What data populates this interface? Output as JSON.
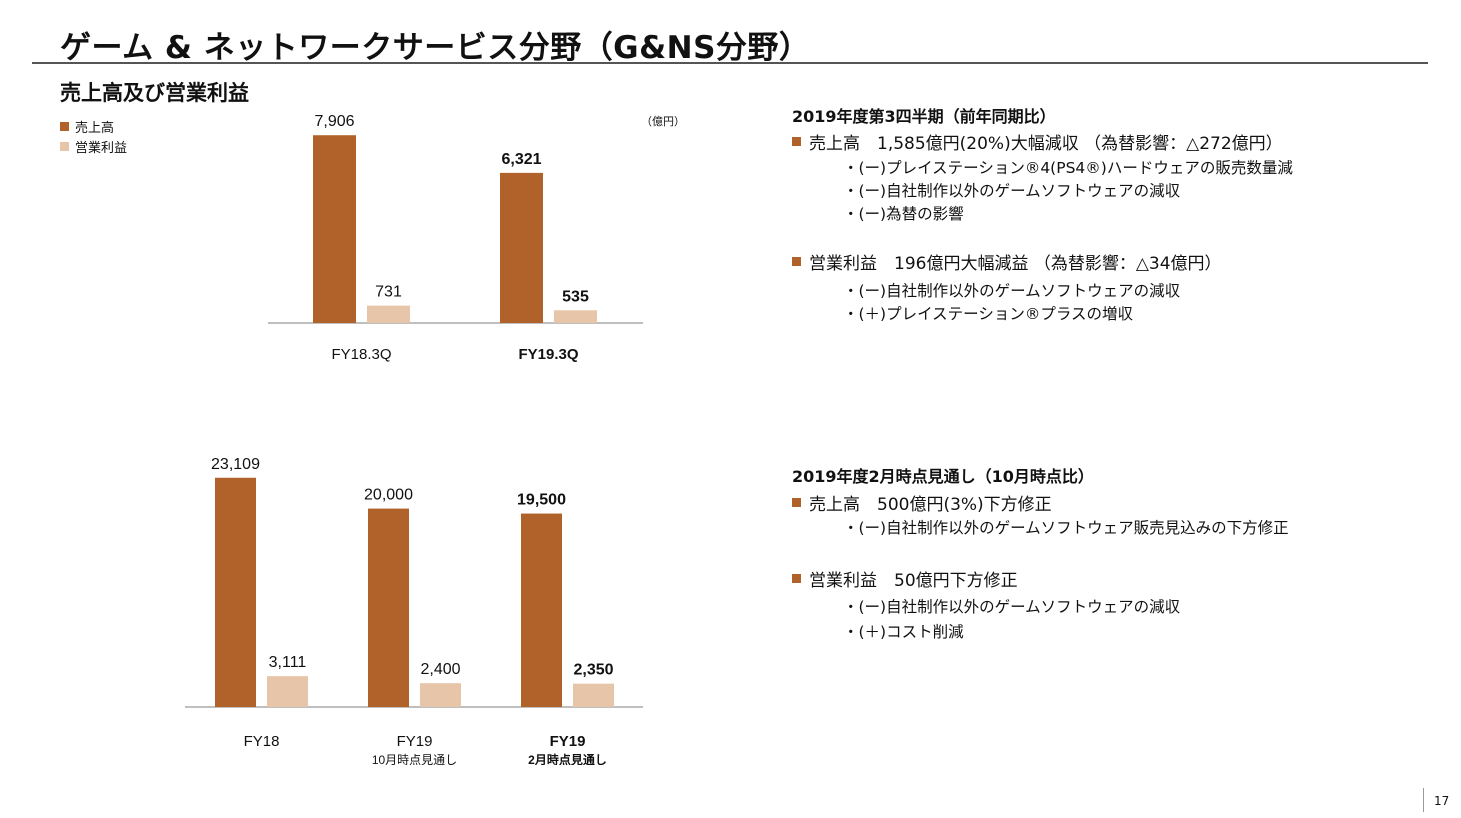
{
  "title": "ゲーム & ネットワークサービス分野（G&NS分野）",
  "subtitle": "売上高及び営業利益",
  "legend": {
    "sales": "売上高",
    "op": "営業利益"
  },
  "unit": "（億円）",
  "colors": {
    "sales": "#b1622a",
    "op": "#e6c5a8",
    "axis": "#999999"
  },
  "chart_data": [
    {
      "type": "bar",
      "categories": [
        "FY18.3Q",
        "FY19.3Q"
      ],
      "category_bold": [
        false,
        true
      ],
      "series": [
        {
          "name": "売上高",
          "values": [
            7906,
            6321
          ],
          "labels": [
            "7,906",
            "6,321"
          ]
        },
        {
          "name": "営業利益",
          "values": [
            731,
            535
          ],
          "labels": [
            "731",
            "535"
          ]
        }
      ],
      "ylim": [
        0,
        8000
      ]
    },
    {
      "type": "bar",
      "categories": [
        "FY18",
        "FY19",
        "FY19"
      ],
      "category_sub": [
        "",
        "10月時点見通し",
        "2月時点見通し"
      ],
      "category_bold": [
        false,
        false,
        true
      ],
      "series": [
        {
          "name": "売上高",
          "values": [
            23109,
            20000,
            19500
          ],
          "labels": [
            "23,109",
            "20,000",
            "19,500"
          ]
        },
        {
          "name": "営業利益",
          "values": [
            3111,
            2400,
            2350
          ],
          "labels": [
            "3,111",
            "2,400",
            "2,350"
          ]
        }
      ],
      "ylim": [
        0,
        25000
      ]
    }
  ],
  "q3": {
    "heading": "2019年度第3四半期（前年同期比）",
    "bullets": [
      {
        "text": "売上高　1,585億円(20%)大幅減収 （為替影響：△272億円）",
        "subs": [
          "・(ー)プレイステーション®4(PS4®)ハードウェアの販売数量減",
          "・(ー)自社制作以外のゲームソフトウェアの減収",
          "・(ー)為替の影響"
        ]
      },
      {
        "text": "営業利益　196億円大幅減益 （為替影響：△34億円）",
        "subs": [
          "・(ー)自社制作以外のゲームソフトウェアの減収",
          "・(＋)プレイステーション®プラスの増収"
        ]
      }
    ]
  },
  "forecast": {
    "heading": "2019年度2月時点見通し（10月時点比）",
    "bullets": [
      {
        "text": "売上高　500億円(3%)下方修正",
        "subs": [
          "・(ー)自社制作以外のゲームソフトウェア販売見込みの下方修正"
        ]
      },
      {
        "text": "営業利益　50億円下方修正",
        "subs": [
          "・(ー)自社制作以外のゲームソフトウェアの減収",
          "・(＋)コスト削減"
        ]
      }
    ]
  },
  "page_number": "17"
}
